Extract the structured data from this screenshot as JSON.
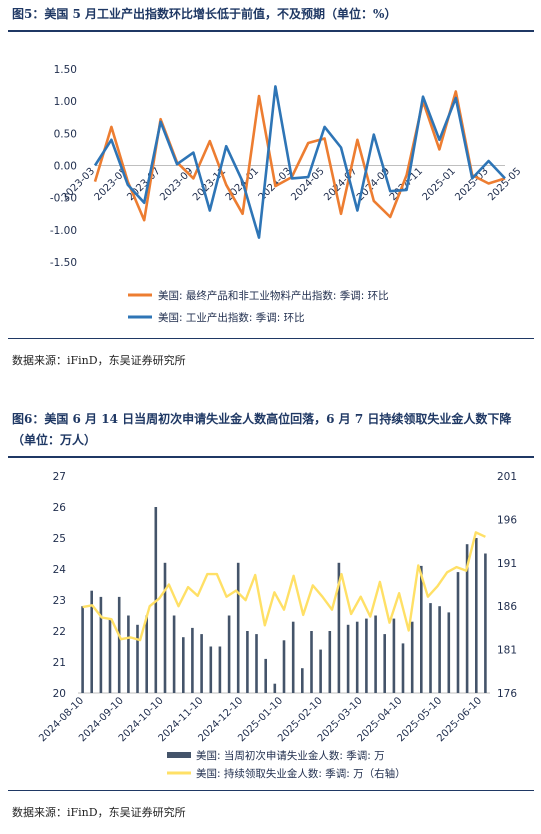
{
  "figure1": {
    "title": "图5：美国 5 月工业产出指数环比增长低于前值，不及预期（单位：%）",
    "source": "数据来源：iFinD，东吴证券研究所"
  },
  "figure2": {
    "title": "图6：美国 6 月 14 日当周初次申请失业金人数高位回落，6 月 7 日持续领取失业金人数下降（单位：万人）",
    "source": "数据来源：iFinD，东吴证券研究所"
  },
  "chart_data": [
    {
      "type": "line",
      "title": "",
      "ylim": [
        -1.5,
        1.5
      ],
      "yticks": [
        "1.50",
        "1.00",
        "0.50",
        "0.00",
        "-0.50",
        "-1.00",
        "-1.50"
      ],
      "x_labels": [
        "2023-03",
        "2023-05",
        "2023-07",
        "2023-09",
        "2023-11",
        "2024-01",
        "2024-03",
        "2024-05",
        "2024-07",
        "2024-09",
        "2024-11",
        "2025-01",
        "2025-03",
        "2025-05"
      ],
      "grid": false,
      "legend_position": "bottom",
      "series": [
        {
          "name": "美国: 最终产品和非工业物料产出指数: 季调: 环比",
          "color": "#ed7d31",
          "values": [
            -0.25,
            0.6,
            -0.25,
            -0.85,
            0.72,
            0.05,
            -0.2,
            0.38,
            -0.3,
            -0.75,
            1.08,
            -0.32,
            -0.18,
            0.35,
            0.42,
            -0.75,
            0.4,
            -0.55,
            -0.8,
            -0.15,
            1.0,
            0.25,
            1.15,
            -0.15,
            -0.28,
            -0.2
          ]
        },
        {
          "name": "美国: 工业产出指数: 季调: 环比",
          "color": "#2e75b6",
          "values": [
            0.0,
            0.4,
            -0.3,
            -0.58,
            0.68,
            0.02,
            0.2,
            -0.7,
            0.3,
            -0.25,
            -1.12,
            1.23,
            -0.2,
            -0.18,
            0.6,
            0.28,
            -0.7,
            0.48,
            -0.4,
            -0.38,
            1.07,
            0.4,
            1.05,
            -0.2,
            0.07,
            -0.2
          ]
        }
      ]
    },
    {
      "type": "bar+line",
      "title": "",
      "ylim": [
        20,
        27
      ],
      "yticks_left": [
        "27",
        "26",
        "25",
        "24",
        "23",
        "22",
        "21",
        "20"
      ],
      "ylim_right": [
        176,
        201
      ],
      "yticks_right": [
        "201",
        "196",
        "191",
        "186",
        "181",
        "176"
      ],
      "x_labels": [
        "2024-08-10",
        "2024-09-10",
        "2024-10-10",
        "2024-11-10",
        "2024-12-10",
        "2025-01-10",
        "2025-02-10",
        "2025-03-10",
        "2025-04-10",
        "2025-05-10",
        "2025-06-10"
      ],
      "grid": false,
      "legend_position": "bottom",
      "series": [
        {
          "name": "美国: 当周初次申请失业金人数: 季调: 万",
          "type": "bar",
          "axis": "left",
          "color": "#44546a",
          "values": [
            22.8,
            23.3,
            23.1,
            22.4,
            23.1,
            22.5,
            22.2,
            22.5,
            26.0,
            24.2,
            22.5,
            21.8,
            22.1,
            21.9,
            21.5,
            21.5,
            22.5,
            24.2,
            22.0,
            21.9,
            21.1,
            20.3,
            21.7,
            22.3,
            20.8,
            22.0,
            21.4,
            22.0,
            24.2,
            22.2,
            22.3,
            22.4,
            22.5,
            21.9,
            22.4,
            21.6,
            22.3,
            24.1,
            22.9,
            22.8,
            22.6,
            23.9,
            24.8,
            25.0,
            24.5
          ]
        },
        {
          "name": "美国: 持续领取失业金人数: 季调: 万（右轴）",
          "type": "line",
          "axis": "right",
          "color": "#ffe066",
          "values": [
            185.9,
            186.1,
            184.7,
            184.5,
            182.2,
            182.4,
            182.1,
            186.0,
            186.9,
            188.5,
            186.0,
            188.2,
            187.2,
            189.7,
            189.7,
            187.1,
            187.8,
            186.7,
            189.6,
            183.8,
            187.6,
            185.6,
            189.5,
            185.0,
            188.4,
            187.1,
            185.6,
            189.7,
            185.1,
            187.1,
            184.8,
            188.8,
            184.1,
            187.5,
            183.2,
            190.7,
            187.1,
            188.3,
            189.9,
            190.5,
            190.1,
            194.5,
            194.0
          ]
        }
      ]
    }
  ]
}
